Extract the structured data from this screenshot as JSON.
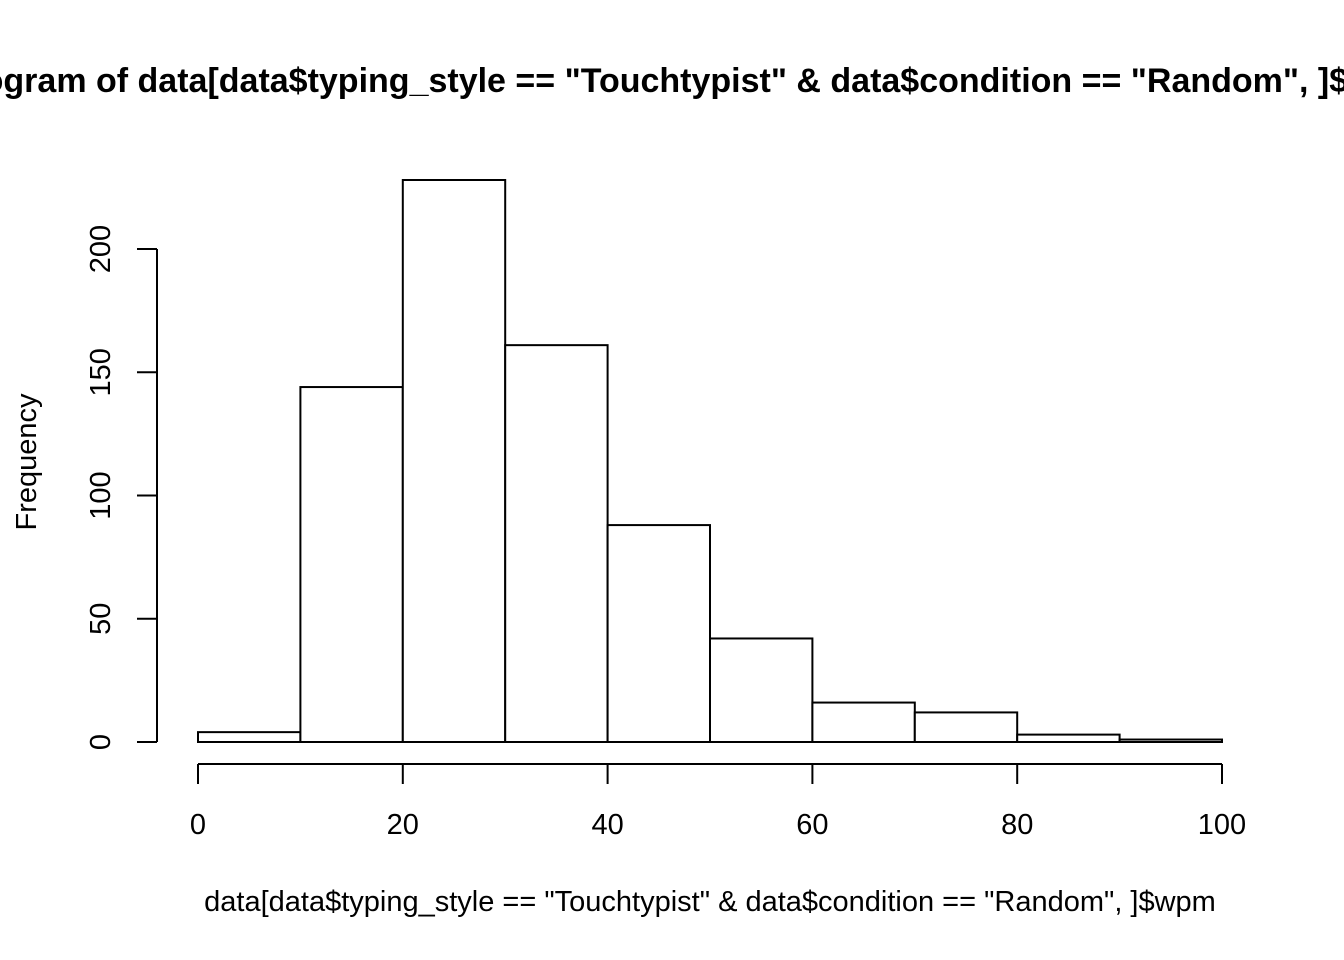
{
  "chart_data": {
    "type": "bar",
    "title": "Histogram of data[data$typing_style == \"Touchtypist\" & data$condition == \"Random\", ]$wpm",
    "xlabel": "data[data$typing_style == \"Touchtypist\" & data$condition == \"Random\", ]$wpm",
    "ylabel": "Frequency",
    "bins": [
      {
        "from": 0,
        "to": 10,
        "count": 4
      },
      {
        "from": 10,
        "to": 20,
        "count": 144
      },
      {
        "from": 20,
        "to": 30,
        "count": 228
      },
      {
        "from": 30,
        "to": 40,
        "count": 161
      },
      {
        "from": 40,
        "to": 50,
        "count": 88
      },
      {
        "from": 50,
        "to": 60,
        "count": 42
      },
      {
        "from": 60,
        "to": 70,
        "count": 16
      },
      {
        "from": 70,
        "to": 80,
        "count": 12
      },
      {
        "from": 80,
        "to": 90,
        "count": 3
      },
      {
        "from": 90,
        "to": 100,
        "count": 1
      }
    ],
    "x_ticks": [
      "0",
      "20",
      "40",
      "60",
      "80",
      "100"
    ],
    "y_ticks": [
      "0",
      "50",
      "100",
      "150",
      "200"
    ],
    "xlim": [
      0,
      100
    ],
    "ylim": [
      0,
      228
    ],
    "grid": false,
    "colors": {
      "bar_fill": "#ffffff",
      "bar_stroke": "#000000"
    }
  }
}
